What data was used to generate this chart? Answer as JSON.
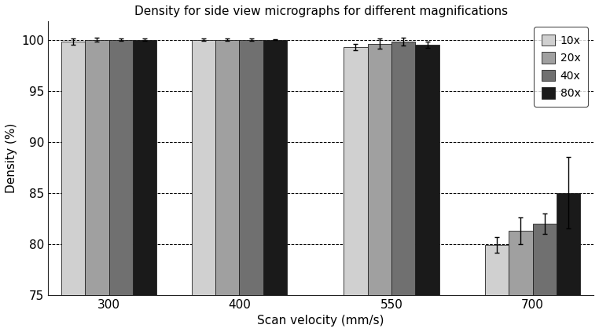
{
  "title": "Density for side view micrographs for different magnifications",
  "xlabel": "Scan velocity (mm/s)",
  "ylabel": "Density (%)",
  "categories": [
    300,
    400,
    550,
    700
  ],
  "series_labels": [
    "10x",
    "20x",
    "40x",
    "80x"
  ],
  "bar_colors": [
    "#d0d0d0",
    "#a0a0a0",
    "#707070",
    "#1a1a1a"
  ],
  "bar_edgecolor": "#222222",
  "values": {
    "10x": [
      99.8,
      100.0,
      99.3,
      79.9
    ],
    "20x": [
      100.0,
      100.0,
      99.6,
      81.3
    ],
    "40x": [
      100.0,
      100.0,
      99.8,
      82.0
    ],
    "80x": [
      100.0,
      100.0,
      99.5,
      85.0
    ]
  },
  "errors": {
    "10x": [
      0.3,
      0.1,
      0.3,
      0.8
    ],
    "20x": [
      0.2,
      0.1,
      0.5,
      1.3
    ],
    "40x": [
      0.1,
      0.1,
      0.4,
      1.0
    ],
    "80x": [
      0.1,
      0.05,
      0.3,
      3.5
    ]
  },
  "ylim": [
    75,
    101.8
  ],
  "yticks": [
    75,
    80,
    85,
    90,
    95,
    100
  ],
  "grid_color": "#000000",
  "background_color": "#ffffff",
  "legend_loc": "upper right",
  "x_positions": [
    1.0,
    2.2,
    3.6,
    4.9
  ],
  "bar_width": 0.22
}
